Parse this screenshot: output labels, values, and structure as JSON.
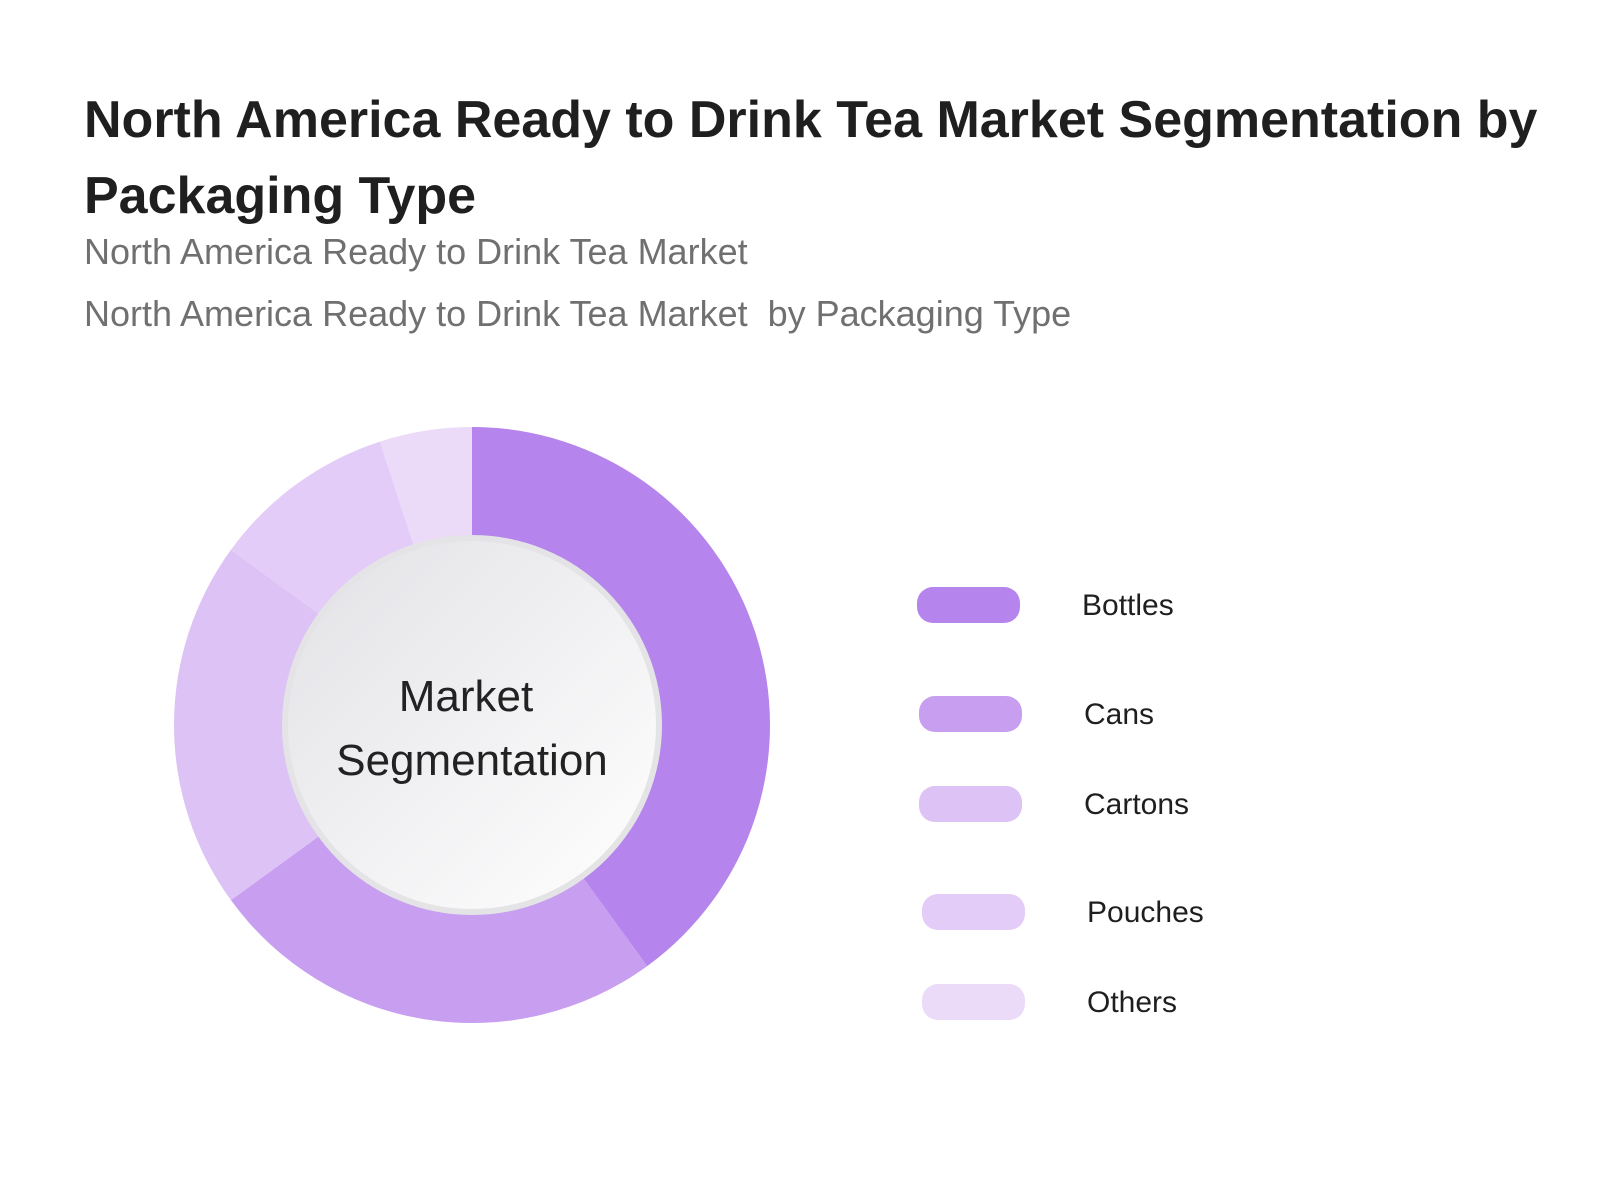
{
  "header": {
    "title": "North America Ready to Drink Tea Market Segmentation by Packaging Type",
    "subtitle_1": "North America Ready to Drink Tea Market",
    "subtitle_2": "North America Ready to Drink Tea Market  by Packaging Type"
  },
  "chart_data": {
    "type": "pie",
    "variant": "donut",
    "title": "North America Ready to Drink Tea Market Segmentation by Packaging Type",
    "center_label": [
      "Market",
      "Segmentation"
    ],
    "categories": [
      "Bottles",
      "Cans",
      "Cartons",
      "Pouches",
      "Others"
    ],
    "values": [
      40,
      25,
      20,
      10,
      5
    ],
    "value_unit": "percent share (estimated from slice angles)",
    "colors": [
      "#b584ec",
      "#c79ef0",
      "#dcc2f5",
      "#e3ccf7",
      "#ebdbf9"
    ],
    "legend_position": "right"
  }
}
